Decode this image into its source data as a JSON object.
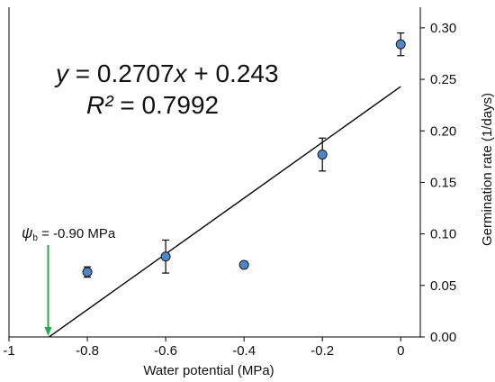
{
  "chart_data": {
    "type": "scatter",
    "xlabel": "Water potential (MPa)",
    "ylabel": "Germination rate (1/days)",
    "xlim": [
      -1,
      0.05
    ],
    "ylim": [
      0,
      0.32
    ],
    "x_ticks": [
      -1,
      -0.8,
      -0.6,
      -0.4,
      -0.2,
      0
    ],
    "x_tick_labels": [
      "-1",
      "-0.8",
      "-0.6",
      "-0.4",
      "-0.2",
      "0"
    ],
    "y_ticks": [
      0,
      0.05,
      0.1,
      0.15,
      0.2,
      0.25,
      0.3
    ],
    "y_tick_labels": [
      "0.00",
      "0.05",
      "0.10",
      "0.15",
      "0.20",
      "0.25",
      "0.30"
    ],
    "y_axis_side": "right",
    "grid": false,
    "marker_color": "#4f86c6",
    "points": [
      {
        "x": -0.8,
        "y": 0.063,
        "err": 0.005
      },
      {
        "x": -0.6,
        "y": 0.078,
        "err": 0.016
      },
      {
        "x": -0.4,
        "y": 0.07,
        "err": 0
      },
      {
        "x": -0.2,
        "y": 0.177,
        "err": 0.016
      },
      {
        "x": 0,
        "y": 0.284,
        "err": 0.011
      }
    ],
    "fit_line": {
      "slope": 0.2707,
      "intercept": 0.243,
      "x_start": -0.898,
      "x_end": 0
    },
    "equation": {
      "y": "y",
      "eq_main": " = 0.2707",
      "x": "x",
      "eq_tail": " + 0.243"
    },
    "r_squared": {
      "label": "R²",
      "value": " = 0.7992"
    },
    "annotation": {
      "psi_symbol": "ψ",
      "psi_sub": "b",
      "text": " = -0.90 MPa",
      "x": -0.9,
      "arrow_color": "#22aa4b"
    }
  }
}
